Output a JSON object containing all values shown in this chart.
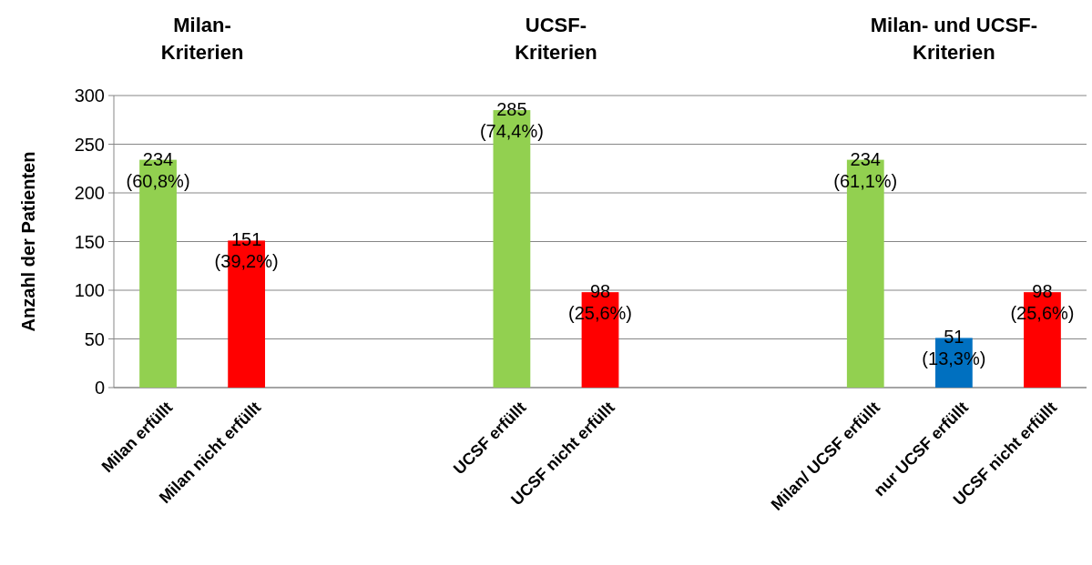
{
  "chart_data": {
    "type": "bar",
    "ylabel": "Anzahl der Patienten",
    "categories": [
      "Milan erfüllt",
      "Milan nicht erfüllt",
      null,
      null,
      "UCSF erfüllt",
      "UCSF nicht erfüllt",
      null,
      null,
      "Milan/ UCSF erfüllt",
      "nur UCSF erfüllt",
      "UCSF nicht erfüllt"
    ],
    "values": [
      234,
      151,
      null,
      null,
      285,
      98,
      null,
      null,
      234,
      51,
      98
    ],
    "colors": [
      "#92d050",
      "#ff0000",
      null,
      null,
      "#92d050",
      "#ff0000",
      null,
      null,
      "#92d050",
      "#0070c0",
      "#ff0000"
    ],
    "value_labels": [
      "234\n(60,8%)",
      "151\n(39,2%)",
      null,
      null,
      "285\n(74,4%)",
      "98\n(25,6%)",
      null,
      null,
      "234\n(61,1%)",
      "51\n(13,3%)",
      "98\n(25,6%)"
    ],
    "annotations": [
      "Milan-\nKriterien",
      "UCSF-\nKriterien",
      "Milan- und UCSF-\nKriterien"
    ],
    "ylim": [
      0,
      300
    ],
    "yticks": [
      0,
      50,
      100,
      150,
      200,
      250,
      300
    ],
    "grid": "y"
  }
}
